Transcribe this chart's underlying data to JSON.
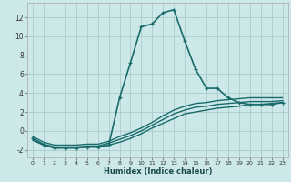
{
  "xlabel": "Humidex (Indice chaleur)",
  "ylabel": "",
  "xlim": [
    -0.5,
    23.5
  ],
  "ylim": [
    -2.8,
    13.5
  ],
  "xticks": [
    0,
    1,
    2,
    3,
    4,
    5,
    6,
    7,
    8,
    9,
    10,
    11,
    12,
    13,
    14,
    15,
    16,
    17,
    18,
    19,
    20,
    21,
    22,
    23
  ],
  "yticks": [
    -2,
    0,
    2,
    4,
    6,
    8,
    10,
    12
  ],
  "background_color": "#cce8e8",
  "grid_color": "#aacccc",
  "line_color": "#1a6b6b",
  "lines": [
    {
      "x": [
        0,
        1,
        2,
        3,
        4,
        5,
        6,
        7,
        8,
        9,
        10,
        11,
        12,
        13,
        14,
        15,
        16,
        17,
        18,
        19,
        20,
        21,
        22,
        23
      ],
      "y": [
        -1.0,
        -1.5,
        -1.8,
        -1.8,
        -1.8,
        -1.7,
        -1.7,
        -1.5,
        -1.2,
        -0.8,
        -0.3,
        0.3,
        0.8,
        1.3,
        1.8,
        2.0,
        2.2,
        2.4,
        2.5,
        2.6,
        2.8,
        2.8,
        2.9,
        3.0
      ],
      "has_markers": false,
      "lw": 1.0
    },
    {
      "x": [
        0,
        1,
        2,
        3,
        4,
        5,
        6,
        7,
        8,
        9,
        10,
        11,
        12,
        13,
        14,
        15,
        16,
        17,
        18,
        19,
        20,
        21,
        22,
        23
      ],
      "y": [
        -0.8,
        -1.4,
        -1.7,
        -1.7,
        -1.7,
        -1.6,
        -1.6,
        -1.3,
        -0.9,
        -0.5,
        0.0,
        0.6,
        1.2,
        1.8,
        2.2,
        2.5,
        2.6,
        2.8,
        2.9,
        3.0,
        3.1,
        3.1,
        3.1,
        3.2
      ],
      "has_markers": false,
      "lw": 1.0
    },
    {
      "x": [
        0,
        1,
        2,
        3,
        4,
        5,
        6,
        7,
        8,
        9,
        10,
        11,
        12,
        13,
        14,
        15,
        16,
        17,
        18,
        19,
        20,
        21,
        22,
        23
      ],
      "y": [
        -0.6,
        -1.2,
        -1.5,
        -1.5,
        -1.5,
        -1.4,
        -1.4,
        -1.1,
        -0.6,
        -0.2,
        0.3,
        0.9,
        1.6,
        2.2,
        2.6,
        2.9,
        3.0,
        3.2,
        3.3,
        3.4,
        3.5,
        3.5,
        3.5,
        3.5
      ],
      "has_markers": false,
      "lw": 1.0
    },
    {
      "x": [
        0,
        1,
        2,
        3,
        4,
        5,
        6,
        7,
        8,
        9,
        10,
        11,
        12,
        13,
        14,
        15,
        16,
        17,
        18,
        19,
        20,
        21,
        22,
        23
      ],
      "y": [
        -0.8,
        -1.5,
        -1.8,
        -1.8,
        -1.8,
        -1.7,
        -1.7,
        -1.5,
        3.5,
        7.2,
        11.0,
        11.3,
        12.5,
        12.8,
        9.5,
        6.5,
        4.5,
        4.5,
        3.5,
        3.0,
        2.8,
        2.8,
        2.8,
        3.0
      ],
      "has_markers": true,
      "lw": 1.2
    }
  ]
}
